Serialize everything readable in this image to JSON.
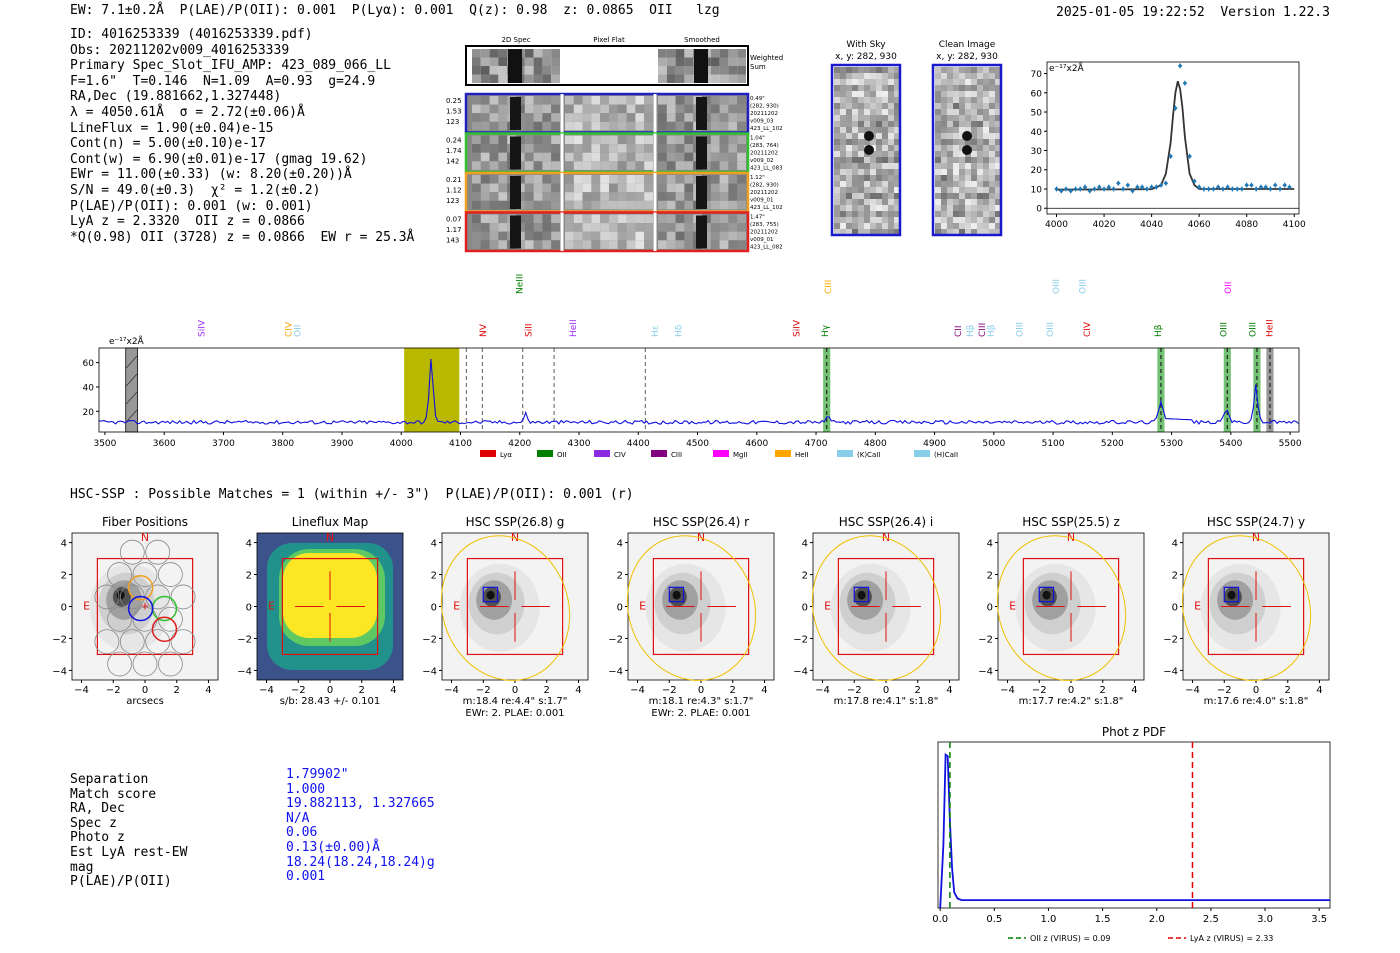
{
  "header": {
    "left": "EW: 7.1±0.2Å  P(LAE)/P(OII): 0.001₀.₀₀₁  P(Lyα): 0.001  Q(z): 0.98  z: 0.0865  OII   lzg",
    "right": "2025-01-05 19:22:52  Version 1.22.3"
  },
  "info_lines": [
    "ID: 4016253339 (4016253339.pdf)",
    "Obs: 20211202v009_4016253339",
    "Primary Spec_Slot_IFU_AMP: 423_089_066_LL",
    "F=1.6\"  T=0.146  N=1.09  A=0.93  g=24.9",
    "RA,Dec (19.881662,1.327448)",
    "λ = 4050.61Å  σ = 2.72(±0.06)Å",
    "LineFlux = 1.90(±0.04)e-15",
    "Cont(n) = 5.00(±0.10)e-17",
    "Cont(w) = 6.90(±0.01)e-17 (gmag 19.62)",
    "EWr = 11.00(±0.33) (w: 8.20(±0.20))Å",
    "S/N = 49.0(±0.3)  χ² = 1.2(±0.2)",
    "P(LAE)/P(OII): 0.001 (w: 0.001)",
    "LyA z = 2.3320  OII z = 0.0866",
    "*Q(0.98) OII (3728) z = 0.0866  EW r = 25.3Å"
  ],
  "cutouts": {
    "columns": [
      "2D Spec",
      "Pixel Flat",
      "Smoothed"
    ],
    "weighted_label": "Weighted Sum",
    "rows": [
      {
        "left": [
          "0.25",
          "1.53",
          "123"
        ],
        "right": [
          "0.49\"",
          "(282, 930)",
          "20211202",
          "v009_03",
          "423_LL_102"
        ],
        "color": "#2020c0"
      },
      {
        "left": [
          "0.24",
          "1.74",
          "142"
        ],
        "right": [
          "1.04\"",
          "(283, 764)",
          "20211202",
          "v009_02",
          "423_LL_083"
        ],
        "color": "#30c030"
      },
      {
        "left": [
          "0.21",
          "1.12",
          "123"
        ],
        "right": [
          "1.12\"",
          "(282, 930)",
          "20211202",
          "v009_01",
          "423_LL_102"
        ],
        "color": "#f0a020"
      },
      {
        "left": [
          "0.07",
          "1.17",
          "143"
        ],
        "right": [
          "1.47\"",
          "(283, 755)",
          "20211202",
          "v009_01",
          "423_LL_082"
        ],
        "color": "#e02020"
      }
    ]
  },
  "sky_panels": [
    {
      "title": "With Sky",
      "coords": "x, y: 282, 930"
    },
    {
      "title": "Clean Image",
      "coords": "x, y: 282, 930"
    }
  ],
  "chart_data": [
    {
      "id": "zoom-spectrum",
      "type": "line",
      "ylabel": "e⁻¹⁷x2Å",
      "xlim": [
        3996,
        4102
      ],
      "ylim": [
        -3,
        76
      ],
      "xticks": [
        4000,
        4020,
        4040,
        4060,
        4080,
        4100
      ],
      "yticks": [
        0,
        10,
        20,
        30,
        40,
        50,
        60,
        70
      ],
      "points_x": [
        4000,
        4002,
        4004,
        4006,
        4008,
        4010,
        4012,
        4014,
        4016,
        4018,
        4020,
        4022,
        4024,
        4026,
        4028,
        4030,
        4032,
        4034,
        4036,
        4038,
        4040,
        4042,
        4044,
        4046,
        4048,
        4050,
        4052,
        4054,
        4056,
        4058,
        4060,
        4062,
        4064,
        4066,
        4068,
        4070,
        4072,
        4074,
        4076,
        4078,
        4080,
        4082,
        4084,
        4086,
        4088,
        4090,
        4092,
        4094,
        4096,
        4098
      ],
      "points_y": [
        10,
        9,
        10,
        9,
        10,
        10,
        11,
        9,
        10,
        11,
        10,
        11,
        10,
        13,
        10,
        12,
        9,
        11,
        11,
        10,
        11,
        11,
        12,
        13,
        27,
        52,
        74,
        65,
        27,
        14,
        11,
        10,
        10,
        10,
        11,
        10,
        11,
        10,
        10,
        10,
        12,
        12,
        10,
        11,
        11,
        10,
        12,
        10,
        12,
        11
      ],
      "fit_x": [
        4000,
        4040,
        4044,
        4046,
        4048,
        4049,
        4050,
        4051,
        4052,
        4053,
        4054,
        4056,
        4058,
        4060,
        4100
      ],
      "fit_y": [
        9.7,
        9.9,
        12,
        18,
        34,
        48,
        60,
        66,
        62,
        52,
        37,
        18,
        12,
        10,
        10
      ]
    },
    {
      "id": "full-spectrum",
      "type": "line",
      "ylabel": "e⁻¹⁷x2Å",
      "xlim": [
        3490,
        5515
      ],
      "ylim": [
        3,
        72
      ],
      "xticks": [
        3500,
        3600,
        3700,
        3800,
        3900,
        4000,
        4100,
        4200,
        4300,
        4400,
        4500,
        4600,
        4700,
        4800,
        4900,
        5000,
        5100,
        5200,
        5300,
        5400,
        5500
      ],
      "yticks": [
        20,
        40,
        60
      ],
      "peak_x": [
        3490,
        4040,
        4045,
        4048,
        4050,
        4053,
        4056,
        4060,
        4100,
        4205,
        4210,
        4215,
        4700,
        4715,
        4720,
        4725,
        5270,
        5275,
        5282,
        5290,
        5380,
        5385,
        5393,
        5400,
        5430,
        5436,
        5442,
        5448,
        5455,
        5515
      ],
      "peak_y": [
        11,
        11,
        20,
        50,
        63,
        50,
        20,
        12,
        11,
        12,
        19,
        12,
        12,
        13,
        17,
        13,
        12,
        15,
        28,
        14,
        12,
        14,
        22,
        13,
        12,
        14,
        42,
        15,
        12,
        12
      ],
      "legend": [
        "Lyα",
        "OII",
        "CIV",
        "CIII",
        "MgII",
        "HeII",
        "(K)CaII",
        "(H)CaII"
      ],
      "legend_colors": [
        "#e00000",
        "#008000",
        "#8a2be2",
        "#800080",
        "#ff00ff",
        "#ffa500",
        "#87ceeb",
        "#87ceeb"
      ],
      "line_labels": [
        {
          "text": "SiIV",
          "x": 3668,
          "color": "#9b30ff",
          "row": 1
        },
        {
          "text": "CIV",
          "x": 3815,
          "color": "#ffa500",
          "row": 1
        },
        {
          "text": "OII",
          "x": 3830,
          "color": "#87ceeb",
          "row": 1
        },
        {
          "text": "NV",
          "x": 4143,
          "color": "#e00000",
          "row": 2
        },
        {
          "text": "NeIII",
          "x": 4205,
          "color": "#008000",
          "row": 3
        },
        {
          "text": "SiII",
          "x": 4220,
          "color": "#e00000",
          "row": 2
        },
        {
          "text": "HeII",
          "x": 4295,
          "color": "#9b30ff",
          "row": 1
        },
        {
          "text": "Hε",
          "x": 4433,
          "color": "#87ceeb",
          "row": 1
        },
        {
          "text": "Hδ",
          "x": 4473,
          "color": "#87ceeb",
          "row": 1
        },
        {
          "text": "SiIV",
          "x": 4672,
          "color": "#e00000",
          "row": 2
        },
        {
          "text": "CIII",
          "x": 4725,
          "color": "#ffa500",
          "row": 3
        },
        {
          "text": "Hγ",
          "x": 4720,
          "color": "#008000",
          "row": 2
        },
        {
          "text": "CII",
          "x": 4945,
          "color": "#800080",
          "row": 1
        },
        {
          "text": "Hβ",
          "x": 4965,
          "color": "#87ceeb",
          "row": 1
        },
        {
          "text": "CIII",
          "x": 4985,
          "color": "#800080",
          "row": 1
        },
        {
          "text": "Hβ",
          "x": 5000,
          "color": "#87ceeb",
          "row": 1
        },
        {
          "text": "OIII",
          "x": 5048,
          "color": "#87ceeb",
          "row": 1
        },
        {
          "text": "OIII",
          "x": 5110,
          "color": "#87ceeb",
          "row": 3
        },
        {
          "text": "OIII",
          "x": 5100,
          "color": "#87ceeb",
          "row": 1
        },
        {
          "text": "OIII",
          "x": 5155,
          "color": "#87ceeb",
          "row": 3
        },
        {
          "text": "CIV",
          "x": 5162,
          "color": "#e00000",
          "row": 1
        },
        {
          "text": "Hβ",
          "x": 5282,
          "color": "#008000",
          "row": 1
        },
        {
          "text": "OIII",
          "x": 5393,
          "color": "#008000",
          "row": 1
        },
        {
          "text": "OII",
          "x": 5400,
          "color": "#ff00ff",
          "row": 3
        },
        {
          "text": "OIII",
          "x": 5442,
          "color": "#008000",
          "row": 1
        },
        {
          "text": "HeII",
          "x": 5470,
          "color": "#e00000",
          "row": 1
        }
      ]
    },
    {
      "id": "photz-pdf",
      "type": "line",
      "title": "Phot z PDF",
      "xlim": [
        -0.02,
        3.6
      ],
      "ylim": [
        0,
        1.05
      ],
      "xticks": [
        0.0,
        0.5,
        1.0,
        1.5,
        2.0,
        2.5,
        3.0,
        3.5
      ],
      "x": [
        0.0,
        0.03,
        0.05,
        0.07,
        0.09,
        0.11,
        0.13,
        0.16,
        0.2,
        0.3,
        1.0,
        2.0,
        3.0,
        3.6
      ],
      "y": [
        0.0,
        0.4,
        0.97,
        0.96,
        0.55,
        0.25,
        0.1,
        0.06,
        0.05,
        0.05,
        0.05,
        0.05,
        0.05,
        0.05
      ],
      "vlines": [
        {
          "label": "OII z (VIRUS) = 0.09",
          "x": 0.09,
          "color": "#008000"
        },
        {
          "label": "LyA z (VIRUS) = 2.33",
          "x": 2.33,
          "color": "#e00000"
        }
      ]
    }
  ],
  "hsc": {
    "title": "HSC-SSP : Possible Matches = 1 (within +/- 3\")  P(LAE)/P(OII): 0.001 (r)",
    "panels": [
      {
        "title": "Fiber Positions",
        "xlabel": "arcsecs"
      },
      {
        "title": "Lineflux Map",
        "xlabel": "s/b: 28.43 +/- 0.101"
      },
      {
        "title": "HSC SSP(26.8) g",
        "xlabel": "m:18.4  re:4.4\"  s:1.7\"",
        "xlabel2": "EWr: 2. PLAE: 0.001"
      },
      {
        "title": "HSC SSP(26.4) r",
        "xlabel": "m:18.1  re:4.3\"  s:1.7\"",
        "xlabel2": "EWr: 2. PLAE: 0.001"
      },
      {
        "title": "HSC SSP(26.4) i",
        "xlabel": "m:17.8  re:4.1\"  s:1.8\""
      },
      {
        "title": "HSC SSP(25.5) z",
        "xlabel": "m:17.7  re:4.2\"  s:1.8\""
      },
      {
        "title": "HSC SSP(24.7) y",
        "xlabel": "m:17.6  re:4.0\"  s:1.8\""
      }
    ],
    "ticks": [
      "−4",
      "−2",
      "0",
      "2",
      "4"
    ],
    "compass_n": "N",
    "compass_e": "E"
  },
  "counterpart": {
    "labels": [
      "Separation",
      "Match score",
      "RA, Dec",
      "Spec z",
      "Photo z",
      "Est LyA rest-EW",
      "mag",
      "P(LAE)/P(OII)"
    ],
    "values": [
      "1.79902\"",
      "1.000",
      "19.882113, 1.327665",
      "N/A",
      "0.06",
      "0.13(±0.00)Å",
      "18.24(18.24,18.24)g",
      "0.001"
    ]
  }
}
